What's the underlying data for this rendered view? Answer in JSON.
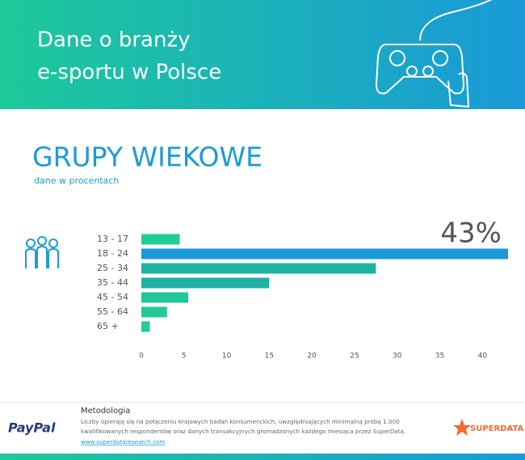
{
  "header": {
    "title_lines": [
      "Dane o branży",
      "e-sportu w Polsce"
    ]
  },
  "chart_data": {
    "type": "hbar",
    "title": "GRUPY WIEKOWE",
    "subtitle": "dane w procentach",
    "categories": [
      "13 - 17",
      "18 - 24",
      "25 - 34",
      "35 - 44",
      "45 - 54",
      "55 - 64",
      "65 +"
    ],
    "values": [
      4.5,
      43,
      27.5,
      15,
      5.5,
      3,
      1
    ],
    "value_labels": [
      null,
      "43%",
      null,
      null,
      null,
      null,
      null
    ],
    "colors": [
      "#22cc98",
      "#1b98d8",
      "#1fb3a0",
      "#1fb0a4",
      "#22c69a",
      "#22c99a",
      "#22cc98"
    ],
    "xlim": [
      0,
      43
    ],
    "xticks": [
      0,
      5,
      10,
      15,
      20,
      25,
      30,
      35,
      40
    ],
    "grid": false
  },
  "footer": {
    "heading": "Metodologia",
    "lines": [
      "Liczby opierają się na połączeniu krajowych badań konsumenckich, uwzględniających minimalną próbę 1.000",
      "kwalifikowanych respondentów oraz danych transakcyjnych gromadzonych każdego miesiąca przez SuperData."
    ],
    "url": "www.superdataresearch.com",
    "left_logo": "PayPal",
    "right_logo": "SUPERDATA"
  }
}
